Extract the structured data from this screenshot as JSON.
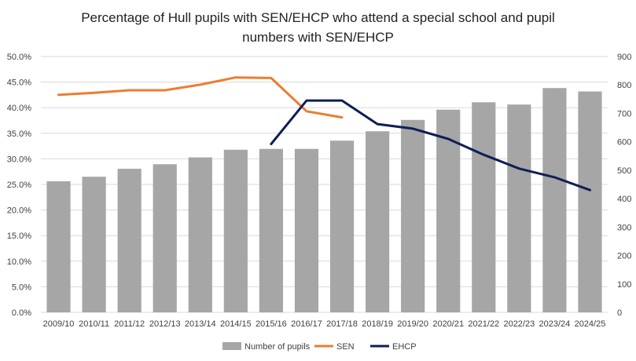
{
  "chart_data": {
    "type": "bar",
    "title_line1": "Percentage of Hull pupils with SEN/EHCP who attend a special school and pupil",
    "title_line2": "numbers with SEN/EHCP",
    "categories": [
      "2009/10",
      "2010/11",
      "2011/12",
      "2012/13",
      "2013/14",
      "2014/15",
      "2015/16",
      "2016/17",
      "2017/18",
      "2018/19",
      "2019/20",
      "2020/21",
      "2021/22",
      "2022/23",
      "2023/24",
      "2024/25"
    ],
    "y_left": {
      "min": 0,
      "max": 0.5,
      "step": 0.05,
      "ticks": [
        "0.0%",
        "5.0%",
        "10.0%",
        "15.0%",
        "20.0%",
        "25.0%",
        "30.0%",
        "35.0%",
        "40.0%",
        "45.0%",
        "50.0%"
      ]
    },
    "y_right": {
      "min": 0,
      "max": 900,
      "step": 100,
      "ticks": [
        "0",
        "100",
        "200",
        "300",
        "400",
        "500",
        "600",
        "700",
        "800",
        "900"
      ]
    },
    "grid": true,
    "legend_position": "bottom",
    "series": [
      {
        "name": "Number of pupils",
        "kind": "bar",
        "axis": "right",
        "color": "#a6a6a6",
        "values": [
          461,
          477,
          505,
          521,
          545,
          572,
          575,
          575,
          604,
          637,
          677,
          713,
          739,
          731,
          789,
          777
        ]
      },
      {
        "name": "SEN",
        "kind": "line",
        "axis": "left",
        "color": "#ed7d31",
        "values": [
          0.425,
          0.429,
          0.434,
          0.434,
          0.445,
          0.459,
          0.458,
          0.393,
          0.381,
          null,
          null,
          null,
          null,
          null,
          null,
          null
        ]
      },
      {
        "name": "EHCP",
        "kind": "line",
        "axis": "left",
        "color": "#0e1f55",
        "values": [
          null,
          null,
          null,
          null,
          null,
          null,
          0.329,
          0.414,
          0.414,
          0.368,
          0.359,
          0.339,
          0.308,
          0.281,
          0.264,
          0.239
        ]
      }
    ]
  }
}
